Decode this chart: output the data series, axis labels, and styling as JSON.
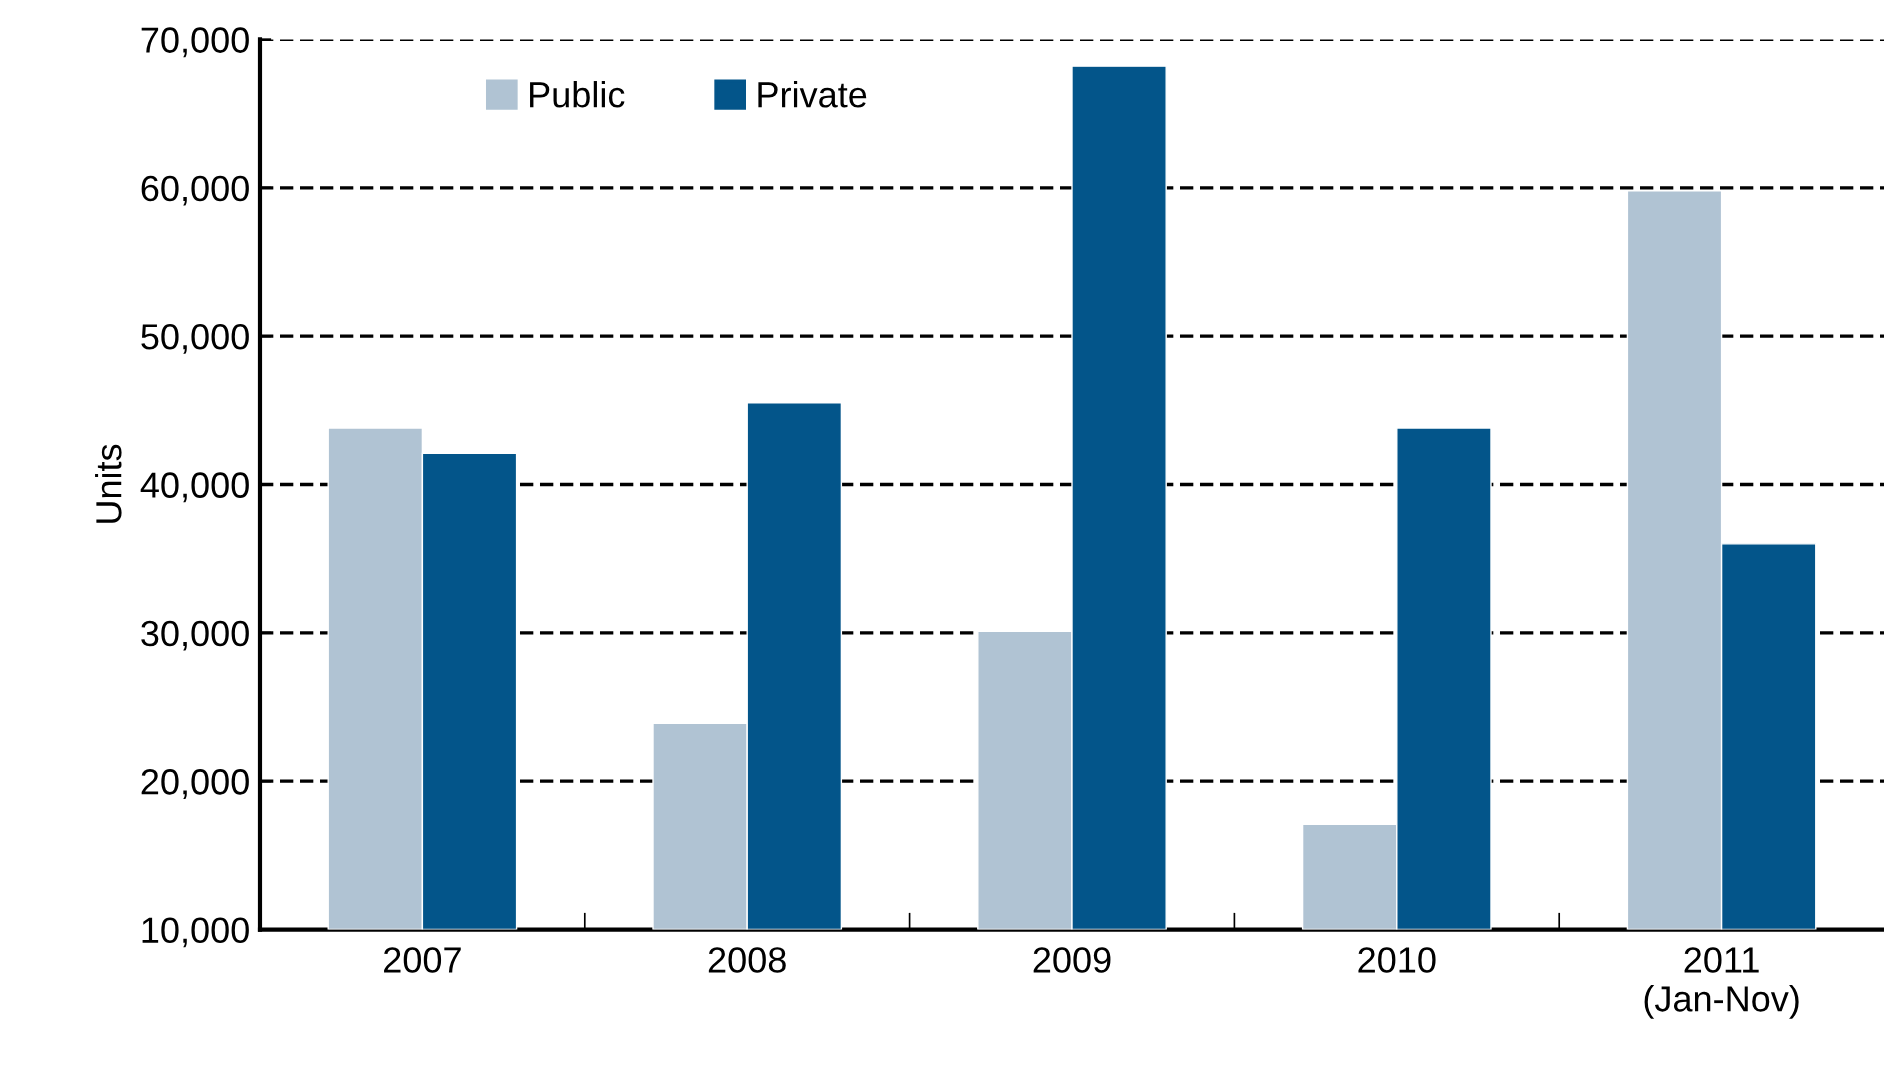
{
  "chart_data": {
    "type": "bar",
    "ylabel": "Units",
    "categories": [
      "2007",
      "2008",
      "2009",
      "2010",
      "2011\n(Jan-Nov)"
    ],
    "series": [
      {
        "name": "Public",
        "color": "#b0c3d3",
        "values": [
          43800,
          23900,
          30100,
          17100,
          59800
        ]
      },
      {
        "name": "Private",
        "color": "#03558a",
        "values": [
          42100,
          45500,
          68200,
          43800,
          36000
        ]
      }
    ],
    "ylim": [
      10000,
      70000
    ],
    "yticks": [
      {
        "value": 10000,
        "label": "10,000"
      },
      {
        "value": 20000,
        "label": "20,000"
      },
      {
        "value": 30000,
        "label": "30,000"
      },
      {
        "value": 40000,
        "label": "40,000"
      },
      {
        "value": 50000,
        "label": "50,000"
      },
      {
        "value": 60000,
        "label": "60,000"
      },
      {
        "value": 70000,
        "label": "70,000"
      }
    ],
    "grid": "y",
    "legend": "top left"
  }
}
